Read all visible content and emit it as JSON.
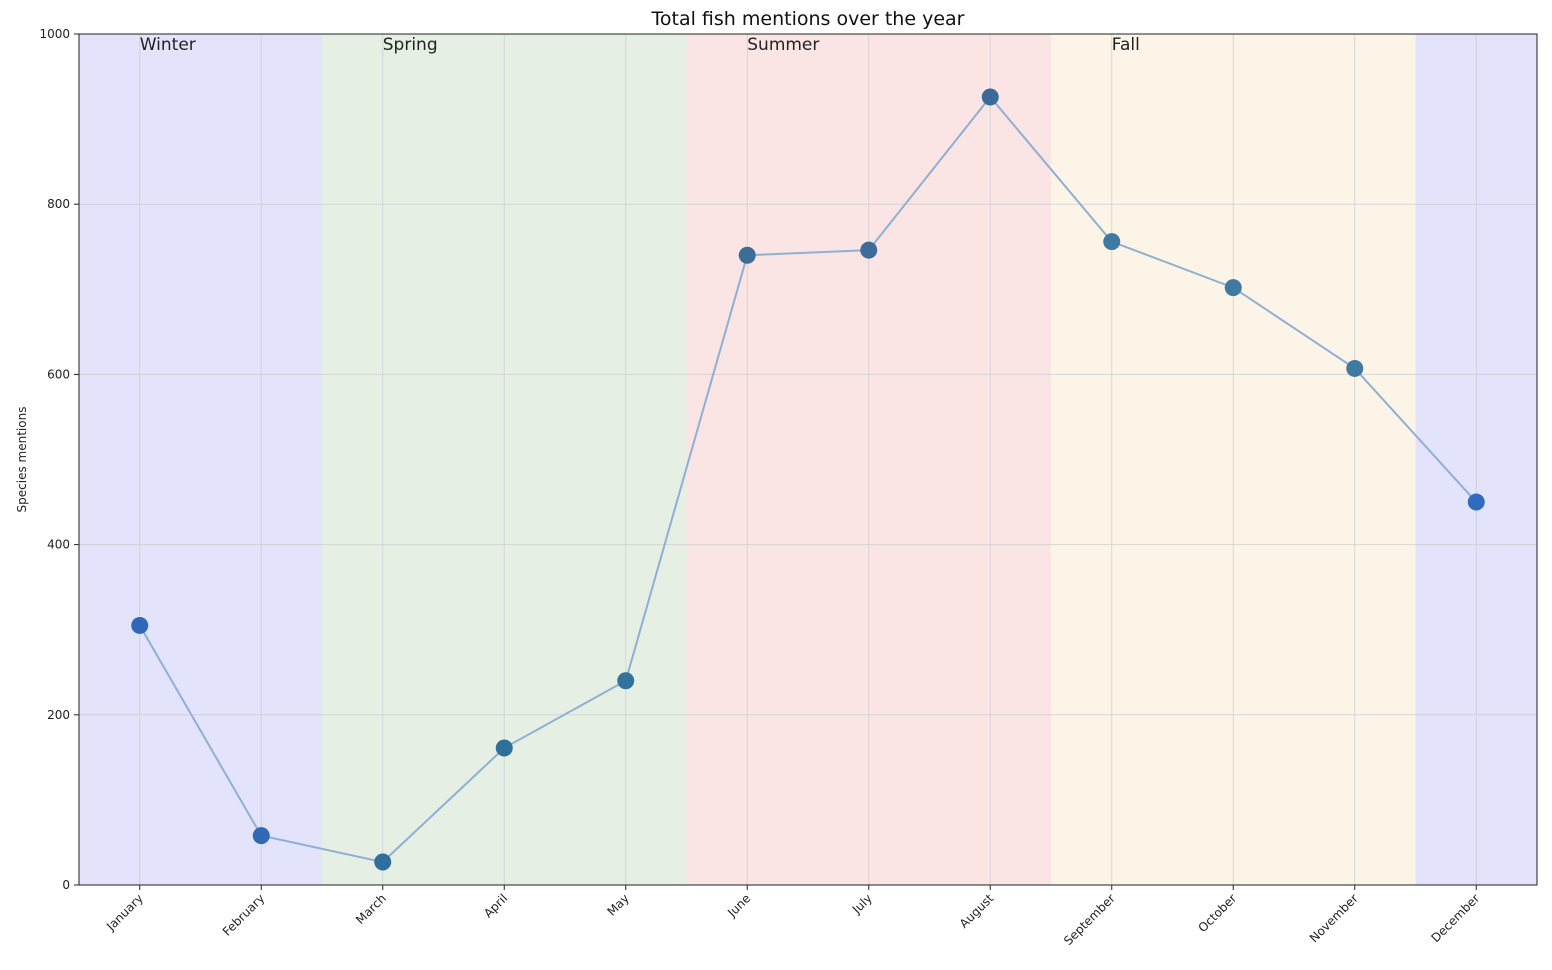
{
  "chart_data": {
    "type": "line",
    "title": "Total fish mentions over the year",
    "xlabel": "",
    "ylabel": "Species mentions",
    "categories": [
      "January",
      "February",
      "March",
      "April",
      "May",
      "June",
      "July",
      "August",
      "September",
      "October",
      "November",
      "December"
    ],
    "series": [
      {
        "values": [
          305,
          58,
          27,
          161,
          240,
          740,
          746,
          926,
          756,
          702,
          607,
          450
        ],
        "line_color": "#8fb0d3",
        "marker_colors": [
          "#2f68b8",
          "#2f6ab5",
          "#2f6e9e",
          "#2f6f9c",
          "#31739a",
          "#3d6c99",
          "#3d6c99",
          "#3b6a9a",
          "#3f7aa2",
          "#3f7aa2",
          "#3f7aa2",
          "#2f6bbf"
        ]
      }
    ],
    "ylim": [
      0,
      1000
    ],
    "yticks": [
      0,
      200,
      400,
      600,
      800,
      1000
    ],
    "grid": true,
    "seasons": [
      {
        "label": "Winter",
        "from": -0.5,
        "to": 1.5,
        "color": "#e3e3fb",
        "show_label": true
      },
      {
        "label": "Spring",
        "from": 1.5,
        "to": 4.5,
        "color": "#e5efe4",
        "show_label": true
      },
      {
        "label": "Summer",
        "from": 4.5,
        "to": 7.5,
        "color": "#fae4e4",
        "show_label": true
      },
      {
        "label": "Fall",
        "from": 7.5,
        "to": 10.5,
        "color": "#fcf4e6",
        "show_label": true
      },
      {
        "label": "",
        "from": 10.5,
        "to": 11.5,
        "color": "#e3e3fb",
        "show_label": false
      }
    ]
  }
}
